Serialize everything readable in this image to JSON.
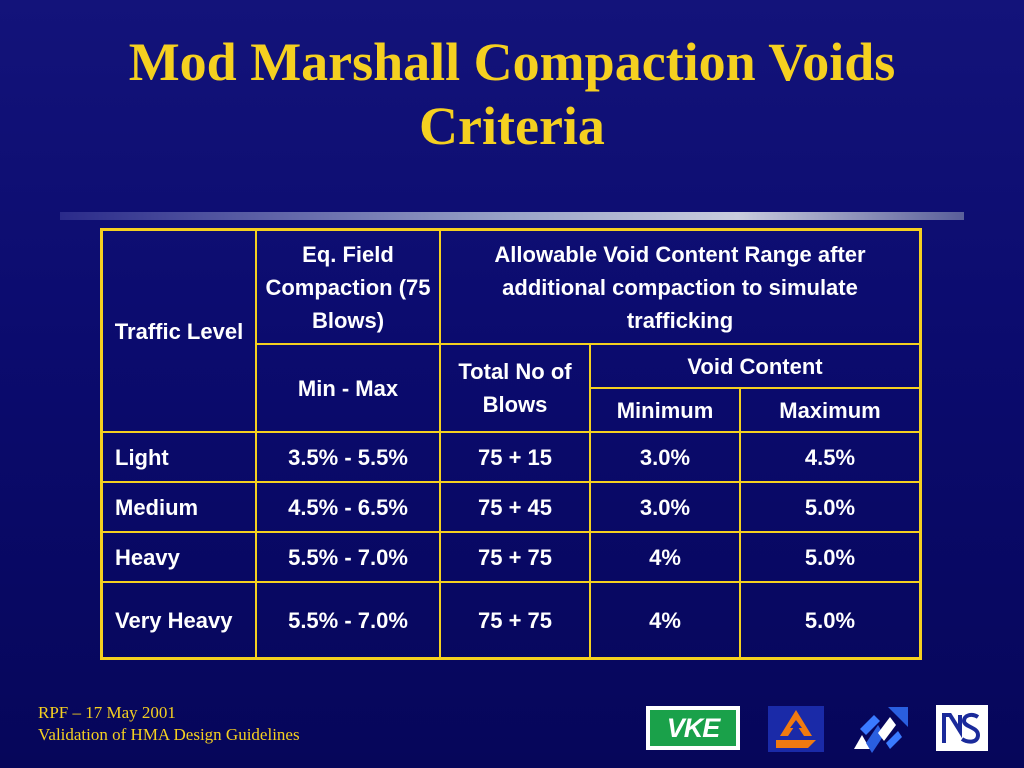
{
  "slide": {
    "title_line1": "Mod Marshall Compaction  Voids",
    "title_line2": "Criteria"
  },
  "table": {
    "header": {
      "traffic_level": "Traffic Level",
      "eq_field": "Eq. Field Compaction (75 Blows)",
      "allowable": "Allowable Void Content Range after additional compaction to simulate trafficking",
      "min_max": "Min - Max",
      "total_blows": "Total No of Blows",
      "void_content": "Void Content",
      "minimum": "Minimum",
      "maximum": "Maximum"
    },
    "rows": [
      {
        "traffic": "Light",
        "range": "3.5% - 5.5%",
        "blows": "75 + 15",
        "min": "3.0%",
        "max": "4.5%"
      },
      {
        "traffic": "Medium",
        "range": "4.5% - 6.5%",
        "blows": "75 + 45",
        "min": "3.0%",
        "max": "5.0%"
      },
      {
        "traffic": "Heavy",
        "range": "5.5% - 7.0%",
        "blows": "75 + 75",
        "min": "4%",
        "max": "5.0%"
      },
      {
        "traffic": "Very Heavy",
        "range": "5.5% - 7.0%",
        "blows": "75 + 75",
        "min": "4%",
        "max": "5.0%"
      }
    ]
  },
  "footer": {
    "line1": "RPF – 17 May 2001",
    "line2": "Validation of HMA Design Guidelines"
  },
  "logos": {
    "vke_text": "VKE",
    "items": [
      "vke-logo",
      "orange-arrow-logo",
      "blue-arrows-logo",
      "ns-logo"
    ]
  },
  "colors": {
    "background": "#0b0b6e",
    "title": "#f5d020",
    "border": "#f5d020",
    "text": "#ffffff",
    "vke_green": "#1aa14a"
  }
}
